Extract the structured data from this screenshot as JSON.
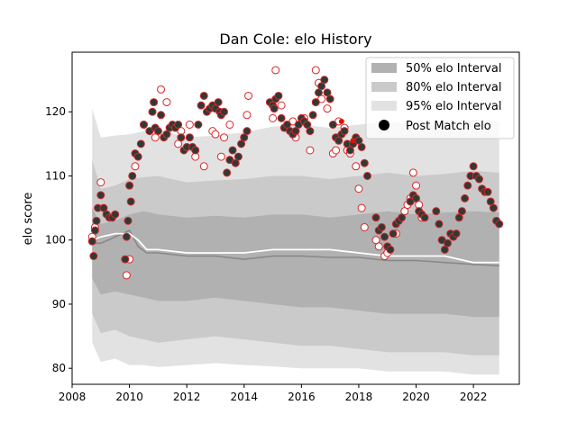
{
  "chart_data": {
    "type": "line",
    "title": "Dan Cole: elo History",
    "xlabel": "",
    "ylabel": "elo score",
    "xlim": [
      2008.0,
      2023.6
    ],
    "ylim": [
      77.5,
      129.3
    ],
    "x_ticks": [
      2008,
      2010,
      2012,
      2014,
      2016,
      2018,
      2020,
      2022
    ],
    "y_ticks": [
      80,
      90,
      100,
      110,
      120
    ],
    "grid": false,
    "legend": {
      "placement": "top-right",
      "entries": [
        {
          "label": "50% elo Interval",
          "kind": "band50"
        },
        {
          "label": "80% elo Interval",
          "kind": "band80"
        },
        {
          "label": "95% elo Interval",
          "kind": "band95"
        },
        {
          "label": "Post Match elo",
          "kind": "dot"
        }
      ]
    },
    "bands": {
      "x": [
        2008.7,
        2009.0,
        2009.5,
        2010.0,
        2010.5,
        2011.0,
        2012.0,
        2013.0,
        2014.0,
        2015.0,
        2016.0,
        2017.0,
        2018.0,
        2019.0,
        2020.0,
        2021.0,
        2022.0,
        2022.9
      ],
      "p95_hi": [
        120.5,
        116.0,
        116.3,
        116.5,
        117.0,
        117.3,
        116.0,
        116.3,
        116.8,
        117.7,
        118.0,
        117.5,
        118.0,
        118.5,
        118.0,
        118.2,
        118.8,
        118.5
      ],
      "p80_hi": [
        112.5,
        108.0,
        108.5,
        109.5,
        109.8,
        110.0,
        109.0,
        109.3,
        109.5,
        110.0,
        110.0,
        109.5,
        110.0,
        110.5,
        110.0,
        110.3,
        110.8,
        110.5
      ],
      "p50_hi": [
        105.0,
        102.5,
        103.0,
        104.0,
        104.5,
        104.0,
        103.5,
        103.8,
        103.5,
        104.0,
        104.0,
        103.5,
        104.0,
        104.5,
        104.0,
        104.3,
        104.5,
        104.3
      ],
      "p50_lo": [
        94.0,
        91.5,
        92.0,
        91.5,
        91.0,
        90.5,
        90.5,
        91.0,
        90.5,
        90.0,
        89.5,
        89.5,
        89.0,
        88.5,
        88.5,
        88.5,
        88.0,
        88.0
      ],
      "p80_lo": [
        88.5,
        85.5,
        86.0,
        85.0,
        84.5,
        84.0,
        84.5,
        85.0,
        84.5,
        84.0,
        83.5,
        83.5,
        83.0,
        82.5,
        82.5,
        82.5,
        82.0,
        82.0
      ],
      "p95_lo": [
        84.0,
        81.0,
        81.5,
        80.5,
        80.5,
        80.2,
        80.5,
        80.8,
        80.5,
        80.3,
        80.0,
        80.0,
        80.0,
        79.5,
        79.5,
        79.5,
        79.0,
        79.0
      ]
    },
    "mean_line": {
      "x": [
        2008.7,
        2009.0,
        2009.5,
        2010.0,
        2010.3,
        2010.6,
        2011.0,
        2012.0,
        2013.0,
        2014.0,
        2015.0,
        2016.0,
        2017.0,
        2018.0,
        2019.0,
        2020.0,
        2021.0,
        2022.0,
        2022.9
      ],
      "y": [
        99.5,
        99.5,
        100.5,
        101.5,
        99.0,
        98.0,
        98.0,
        97.5,
        97.5,
        97.0,
        97.5,
        97.5,
        97.3,
        97.3,
        96.8,
        96.8,
        96.5,
        96.2,
        96.0
      ]
    },
    "median_line": {
      "x": [
        2008.7,
        2009.0,
        2009.5,
        2010.0,
        2010.3,
        2010.6,
        2011.0,
        2012.0,
        2013.0,
        2014.0,
        2015.0,
        2016.0,
        2017.0,
        2018.0,
        2019.0,
        2020.0,
        2021.0,
        2022.0,
        2022.9
      ],
      "y": [
        100.0,
        100.5,
        101.0,
        101.0,
        100.0,
        98.5,
        98.5,
        98.0,
        98.0,
        98.0,
        98.5,
        98.5,
        98.5,
        98.0,
        97.5,
        97.5,
        97.5,
        96.5,
        96.5
      ]
    },
    "elo_points": {
      "x": [
        2008.7,
        2008.75,
        2008.8,
        2008.85,
        2008.9,
        2009.0,
        2009.1,
        2009.2,
        2009.3,
        2009.4,
        2009.5,
        2009.85,
        2009.9,
        2009.95,
        2010.0,
        2010.05,
        2010.1,
        2010.2,
        2010.3,
        2010.4,
        2010.5,
        2010.7,
        2010.8,
        2010.85,
        2010.9,
        2011.0,
        2011.1,
        2011.2,
        2011.3,
        2011.4,
        2011.5,
        2011.6,
        2011.7,
        2011.8,
        2011.9,
        2012.0,
        2012.1,
        2012.2,
        2012.3,
        2012.4,
        2012.5,
        2012.6,
        2012.7,
        2012.8,
        2012.9,
        2013.0,
        2013.1,
        2013.15,
        2013.2,
        2013.3,
        2013.4,
        2013.5,
        2013.6,
        2013.7,
        2013.8,
        2013.9,
        2014.0,
        2014.1,
        2014.9,
        2015.0,
        2015.05,
        2015.1,
        2015.2,
        2015.3,
        2015.4,
        2015.5,
        2015.6,
        2015.7,
        2015.8,
        2015.9,
        2016.0,
        2016.1,
        2016.2,
        2016.3,
        2016.4,
        2016.5,
        2016.6,
        2016.7,
        2016.8,
        2016.9,
        2017.0,
        2017.1,
        2017.2,
        2017.3,
        2017.4,
        2017.5,
        2017.6,
        2017.7,
        2017.8,
        2017.9,
        2018.0,
        2018.1,
        2018.2,
        2018.3,
        2018.6,
        2018.7,
        2018.8,
        2018.9,
        2019.0,
        2019.1,
        2019.2,
        2019.3,
        2019.4,
        2019.5,
        2019.8,
        2019.9,
        2020.0,
        2020.1,
        2020.2,
        2020.3,
        2020.7,
        2020.8,
        2020.9,
        2021.0,
        2021.1,
        2021.2,
        2021.3,
        2021.4,
        2021.5,
        2021.6,
        2021.7,
        2021.8,
        2021.9,
        2022.0,
        2022.1,
        2022.2,
        2022.3,
        2022.4,
        2022.5,
        2022.6,
        2022.7,
        2022.8,
        2022.9
      ],
      "y": [
        99.8,
        97.5,
        101.5,
        103.0,
        105.0,
        107.0,
        105.0,
        104.0,
        103.5,
        103.5,
        104.0,
        97.0,
        100.5,
        103.0,
        108.5,
        106.0,
        110.0,
        113.5,
        113.0,
        115.0,
        118.0,
        117.0,
        120.0,
        121.5,
        117.5,
        117.0,
        119.5,
        116.0,
        116.5,
        117.5,
        118.0,
        117.5,
        118.0,
        116.0,
        114.0,
        114.5,
        116.0,
        114.5,
        114.0,
        118.0,
        121.0,
        122.5,
        120.0,
        120.5,
        121.0,
        120.5,
        121.5,
        120.0,
        119.5,
        120.0,
        110.5,
        112.5,
        114.0,
        112.0,
        113.0,
        115.0,
        116.0,
        117.0,
        121.5,
        121.0,
        120.5,
        122.0,
        122.5,
        119.0,
        117.5,
        118.0,
        117.0,
        116.5,
        117.0,
        118.0,
        119.0,
        118.5,
        118.0,
        117.0,
        119.5,
        121.5,
        123.0,
        124.0,
        125.0,
        123.0,
        122.0,
        118.0,
        116.0,
        115.5,
        116.5,
        117.0,
        115.0,
        114.0,
        115.0,
        116.0,
        115.5,
        114.5,
        112.0,
        110.0,
        103.5,
        101.5,
        102.0,
        100.5,
        99.0,
        98.5,
        101.0,
        102.5,
        103.0,
        103.5,
        106.0,
        107.0,
        106.5,
        104.5,
        104.0,
        103.5,
        104.5,
        102.5,
        100.0,
        98.5,
        99.5,
        101.0,
        100.5,
        101.0,
        103.5,
        104.5,
        106.5,
        108.5,
        110.0,
        111.5,
        110.0,
        109.5,
        108.0,
        107.5,
        107.5,
        106.0,
        105.0,
        103.0,
        102.5
      ]
    },
    "outlier_points": {
      "x": [
        2008.7,
        2008.8,
        2009.0,
        2009.9,
        2010.0,
        2010.2,
        2010.5,
        2010.9,
        2011.1,
        2011.3,
        2011.7,
        2011.8,
        2012.1,
        2012.3,
        2012.6,
        2012.9,
        2013.0,
        2013.2,
        2013.3,
        2013.5,
        2014.1,
        2014.15,
        2015.0,
        2015.1,
        2015.3,
        2015.7,
        2015.8,
        2016.1,
        2016.3,
        2016.5,
        2016.6,
        2016.7,
        2016.9,
        2017.1,
        2017.2,
        2017.3,
        2017.5,
        2017.6,
        2017.7,
        2017.9,
        2018.0,
        2018.1,
        2018.2,
        2018.6,
        2018.7,
        2018.9,
        2019.0,
        2019.3,
        2019.6,
        2019.7,
        2019.8,
        2019.9,
        2020.0,
        2020.1,
        2020.2
      ],
      "y": [
        100.5,
        102.0,
        109.0,
        94.5,
        97.0,
        111.5,
        118.0,
        116.0,
        123.5,
        121.5,
        115.0,
        117.0,
        118.0,
        113.0,
        111.5,
        117.0,
        116.5,
        113.0,
        116.0,
        118.0,
        119.5,
        122.5,
        119.0,
        126.5,
        121.0,
        118.5,
        116.0,
        119.0,
        114.0,
        126.5,
        124.5,
        122.0,
        120.5,
        113.5,
        114.0,
        118.5,
        117.5,
        114.0,
        113.5,
        111.5,
        108.0,
        105.0,
        102.0,
        100.0,
        99.0,
        97.5,
        98.0,
        101.0,
        104.5,
        105.5,
        106.5,
        110.5,
        108.5,
        105.5,
        103.5
      ]
    },
    "highlight_points": {
      "x": [
        2017.4,
        2017.8
      ],
      "y": [
        118.5,
        115.5
      ]
    },
    "colors": {
      "band95": "#e2e2e2",
      "band80": "#cacaca",
      "band50": "#b1b1b1",
      "mean": "#888888",
      "median": "#ffffff",
      "dot_fill": "#2f3a36",
      "dot_edge": "#d62728",
      "highlight": "#e01010"
    }
  }
}
